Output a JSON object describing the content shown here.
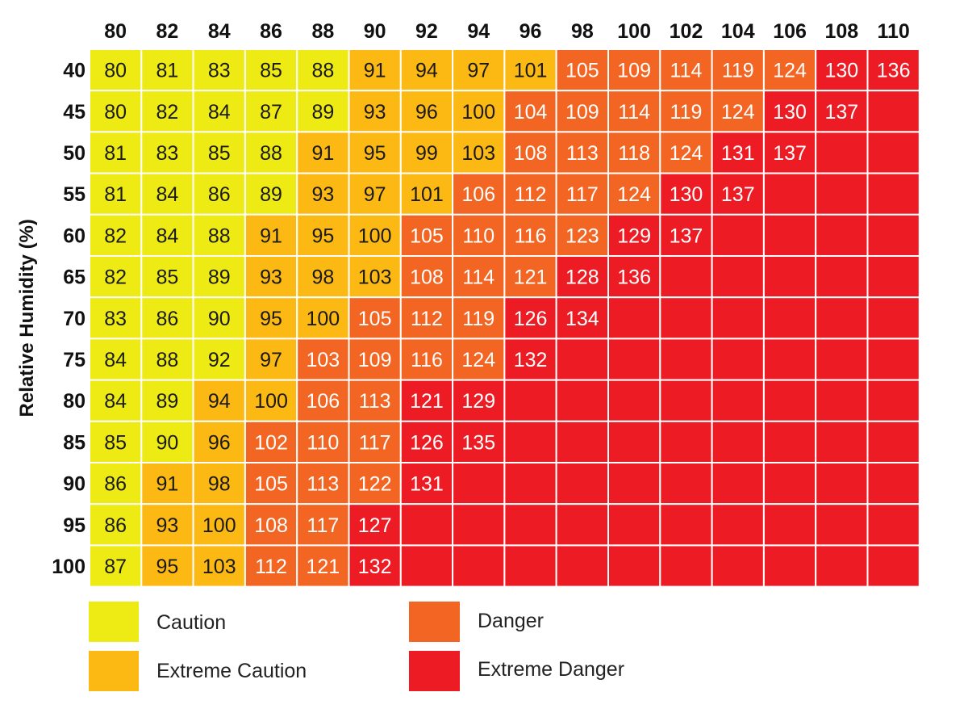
{
  "chart_data": {
    "type": "heatmap",
    "title": "",
    "ylabel": "Relative Humidity (%)",
    "xlabel": "",
    "x": [
      "80",
      "82",
      "84",
      "86",
      "88",
      "90",
      "92",
      "94",
      "96",
      "98",
      "100",
      "102",
      "104",
      "106",
      "108",
      "110"
    ],
    "y": [
      "40",
      "45",
      "50",
      "55",
      "60",
      "65",
      "70",
      "75",
      "80",
      "85",
      "90",
      "95",
      "100"
    ],
    "values": [
      [
        80,
        81,
        83,
        85,
        88,
        91,
        94,
        97,
        101,
        105,
        109,
        114,
        119,
        124,
        130,
        136
      ],
      [
        80,
        82,
        84,
        87,
        89,
        93,
        96,
        100,
        104,
        109,
        114,
        119,
        124,
        130,
        137,
        null
      ],
      [
        81,
        83,
        85,
        88,
        91,
        95,
        99,
        103,
        108,
        113,
        118,
        124,
        131,
        137,
        null,
        null
      ],
      [
        81,
        84,
        86,
        89,
        93,
        97,
        101,
        106,
        112,
        117,
        124,
        130,
        137,
        null,
        null,
        null
      ],
      [
        82,
        84,
        88,
        91,
        95,
        100,
        105,
        110,
        116,
        123,
        129,
        137,
        null,
        null,
        null,
        null
      ],
      [
        82,
        85,
        89,
        93,
        98,
        103,
        108,
        114,
        121,
        128,
        136,
        null,
        null,
        null,
        null,
        null
      ],
      [
        83,
        86,
        90,
        95,
        100,
        105,
        112,
        119,
        126,
        134,
        null,
        null,
        null,
        null,
        null,
        null
      ],
      [
        84,
        88,
        92,
        97,
        103,
        109,
        116,
        124,
        132,
        null,
        null,
        null,
        null,
        null,
        null,
        null
      ],
      [
        84,
        89,
        94,
        100,
        106,
        113,
        121,
        129,
        null,
        null,
        null,
        null,
        null,
        null,
        null,
        null
      ],
      [
        85,
        90,
        96,
        102,
        110,
        117,
        126,
        135,
        null,
        null,
        null,
        null,
        null,
        null,
        null,
        null
      ],
      [
        86,
        91,
        98,
        105,
        113,
        122,
        131,
        null,
        null,
        null,
        null,
        null,
        null,
        null,
        null,
        null
      ],
      [
        86,
        93,
        100,
        108,
        117,
        127,
        null,
        null,
        null,
        null,
        null,
        null,
        null,
        null,
        null,
        null
      ],
      [
        87,
        95,
        103,
        112,
        121,
        132,
        null,
        null,
        null,
        null,
        null,
        null,
        null,
        null,
        null,
        null
      ]
    ],
    "category_cells": [
      [
        0,
        0,
        0,
        0,
        0,
        1,
        1,
        1,
        1,
        2,
        2,
        2,
        2,
        2,
        3,
        3
      ],
      [
        0,
        0,
        0,
        0,
        0,
        1,
        1,
        1,
        2,
        2,
        2,
        2,
        2,
        3,
        3,
        3
      ],
      [
        0,
        0,
        0,
        0,
        1,
        1,
        1,
        1,
        2,
        2,
        2,
        2,
        3,
        3,
        3,
        3
      ],
      [
        0,
        0,
        0,
        0,
        1,
        1,
        1,
        2,
        2,
        2,
        2,
        3,
        3,
        3,
        3,
        3
      ],
      [
        0,
        0,
        0,
        1,
        1,
        1,
        2,
        2,
        2,
        2,
        3,
        3,
        3,
        3,
        3,
        3
      ],
      [
        0,
        0,
        0,
        1,
        1,
        1,
        2,
        2,
        2,
        3,
        3,
        3,
        3,
        3,
        3,
        3
      ],
      [
        0,
        0,
        0,
        1,
        1,
        2,
        2,
        2,
        3,
        3,
        3,
        3,
        3,
        3,
        3,
        3
      ],
      [
        0,
        0,
        0,
        1,
        2,
        2,
        2,
        2,
        3,
        3,
        3,
        3,
        3,
        3,
        3,
        3
      ],
      [
        0,
        0,
        1,
        1,
        2,
        2,
        3,
        3,
        3,
        3,
        3,
        3,
        3,
        3,
        3,
        3
      ],
      [
        0,
        0,
        1,
        2,
        2,
        2,
        3,
        3,
        3,
        3,
        3,
        3,
        3,
        3,
        3,
        3
      ],
      [
        0,
        1,
        1,
        2,
        2,
        2,
        3,
        3,
        3,
        3,
        3,
        3,
        3,
        3,
        3,
        3
      ],
      [
        0,
        1,
        1,
        2,
        2,
        3,
        3,
        3,
        3,
        3,
        3,
        3,
        3,
        3,
        3,
        3
      ],
      [
        0,
        1,
        1,
        2,
        2,
        3,
        3,
        3,
        3,
        3,
        3,
        3,
        3,
        3,
        3,
        3
      ]
    ],
    "categories": [
      {
        "name": "Caution",
        "color": "#EEEB14"
      },
      {
        "name": "Extreme Caution",
        "color": "#FDB913"
      },
      {
        "name": "Danger",
        "color": "#F26522"
      },
      {
        "name": "Extreme Danger",
        "color": "#ED1C24"
      }
    ],
    "legend_position": "bottom",
    "grid": true
  }
}
